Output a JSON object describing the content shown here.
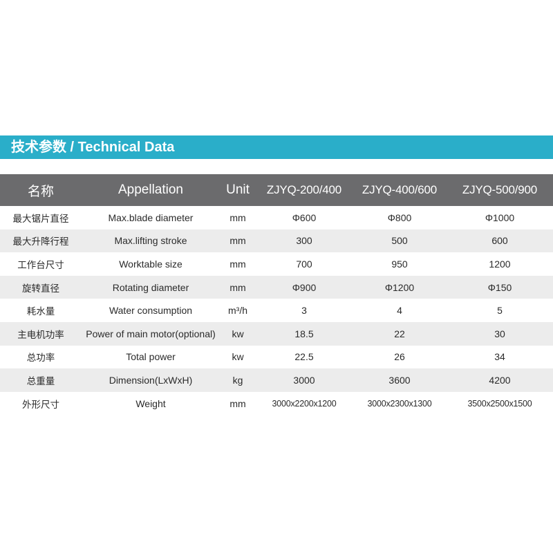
{
  "title": "技术参数 / Technical Data",
  "colors": {
    "banner": "#2aaec9",
    "header_row": "#6b6b6d",
    "stripe": "#ececec"
  },
  "table": {
    "headers": [
      "名称",
      "Appellation",
      "Unit",
      "ZJYQ-200/400",
      "ZJYQ-400/600",
      "ZJYQ-500/900"
    ],
    "rows": [
      [
        "最大锯片直径",
        "Max.blade diameter",
        "mm",
        "Φ600",
        "Φ800",
        "Φ1000"
      ],
      [
        "最大升降行程",
        "Max.lifting stroke",
        "mm",
        "300",
        "500",
        "600"
      ],
      [
        "工作台尺寸",
        "Worktable size",
        "mm",
        "700",
        "950",
        "1200"
      ],
      [
        "旋转直径",
        "Rotating diameter",
        "mm",
        "Φ900",
        "Φ1200",
        "Φ150"
      ],
      [
        "耗水量",
        "Water consumption",
        "m³/h",
        "3",
        "4",
        "5"
      ],
      [
        "主电机功率",
        "Power of main motor(optional)",
        "kw",
        "18.5",
        "22",
        "30"
      ],
      [
        "总功率",
        "Total power",
        "kw",
        "22.5",
        "26",
        "34"
      ],
      [
        "总重量",
        "Dimension(LxWxH)",
        "kg",
        "3000",
        "3600",
        "4200"
      ],
      [
        "外形尺寸",
        "Weight",
        "mm",
        "3000x2200x1200",
        "3000x2300x1300",
        "3500x2500x1500"
      ]
    ]
  }
}
